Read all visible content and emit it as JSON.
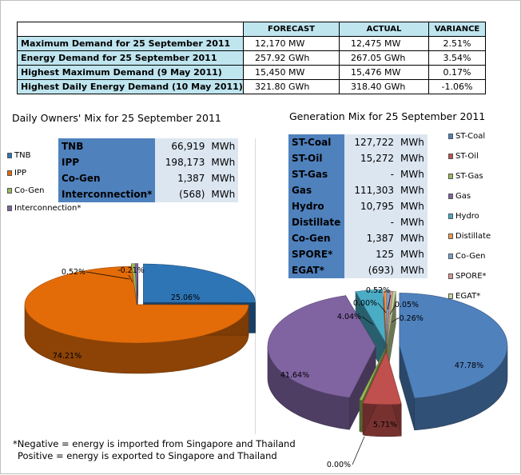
{
  "summary": {
    "headers": [
      "FORECAST",
      "ACTUAL",
      "VARIANCE"
    ],
    "rows": [
      {
        "label": "Maximum Demand for 25 September 2011",
        "forecast": "12,170 MW",
        "actual": "12,475 MW",
        "variance": "2.51%"
      },
      {
        "label": "Energy Demand for 25 September 2011",
        "forecast": "257.92 GWh",
        "actual": "267.05 GWh",
        "variance": "3.54%"
      },
      {
        "label": "Highest Maximum Demand (9 May 2011)",
        "forecast": "15,450 MW",
        "actual": "15,476 MW",
        "variance": "0.17%"
      },
      {
        "label": "Highest Daily Energy Demand (10 May 2011)",
        "forecast": "321.80 GWh",
        "actual": "318.40 GWh",
        "variance": "-1.06%"
      }
    ]
  },
  "owners_mix": {
    "title": "Daily Owners' Mix for 25 September 2011",
    "rows": [
      {
        "label": "TNB",
        "value": "66,919",
        "unit": "MWh"
      },
      {
        "label": "IPP",
        "value": "198,173",
        "unit": "MWh"
      },
      {
        "label": "Co-Gen",
        "value": "1,387",
        "unit": "MWh"
      },
      {
        "label": "Interconnection*",
        "value": "(568)",
        "unit": "MWh"
      }
    ]
  },
  "generation_mix": {
    "title": "Generation Mix for 25 September 2011",
    "rows": [
      {
        "label": "ST-Coal",
        "value": "127,722",
        "unit": "MWh"
      },
      {
        "label": "ST-Oil",
        "value": "15,272",
        "unit": "MWh"
      },
      {
        "label": "ST-Gas",
        "value": "-",
        "unit": "MWh"
      },
      {
        "label": "Gas",
        "value": "111,303",
        "unit": "MWh"
      },
      {
        "label": "Hydro",
        "value": "10,795",
        "unit": "MWh"
      },
      {
        "label": "Distillate",
        "value": "-",
        "unit": "MWh"
      },
      {
        "label": "Co-Gen",
        "value": "1,387",
        "unit": "MWh"
      },
      {
        "label": "SPORE*",
        "value": "125",
        "unit": "MWh"
      },
      {
        "label": "EGAT*",
        "value": "(693)",
        "unit": "MWh"
      }
    ]
  },
  "chart_data": [
    {
      "type": "pie",
      "title": "",
      "categories": [
        "TNB",
        "IPP",
        "Co-Gen",
        "Interconnection*"
      ],
      "values": [
        25.06,
        74.21,
        0.52,
        -0.21
      ],
      "data_labels": [
        "25.06%",
        "74.21%",
        "0.52%",
        "-0.21%"
      ],
      "colors": [
        "#2e75b6",
        "#e36c09",
        "#9bbb59",
        "#7f64a2"
      ],
      "legend": "left",
      "exploded": true,
      "style": "3d"
    },
    {
      "type": "pie",
      "title": "",
      "categories": [
        "ST-Coal",
        "ST-Oil",
        "ST-Gas",
        "Gas",
        "Hydro",
        "Distillate",
        "Co-Gen",
        "SPORE*",
        "EGAT*"
      ],
      "values": [
        47.78,
        5.71,
        0.0,
        41.64,
        4.04,
        0.0,
        0.52,
        0.05,
        -0.26
      ],
      "data_labels": [
        "47.78%",
        "5.71%",
        "0.00%",
        "41.64%",
        "4.04%",
        "0.00%",
        "0.52%",
        "0.05%",
        "-0.26%"
      ],
      "colors": [
        "#4f81bd",
        "#c0504d",
        "#9bbb59",
        "#8064a2",
        "#4bacc6",
        "#f79646",
        "#7ba0cd",
        "#d99694",
        "#c3d69b"
      ],
      "legend": "right",
      "exploded": true,
      "style": "3d"
    }
  ],
  "footnote": {
    "line1": "*Negative = energy is imported from Singapore and Thailand",
    "line2": "Positive = energy is exported to Singapore and Thailand"
  }
}
